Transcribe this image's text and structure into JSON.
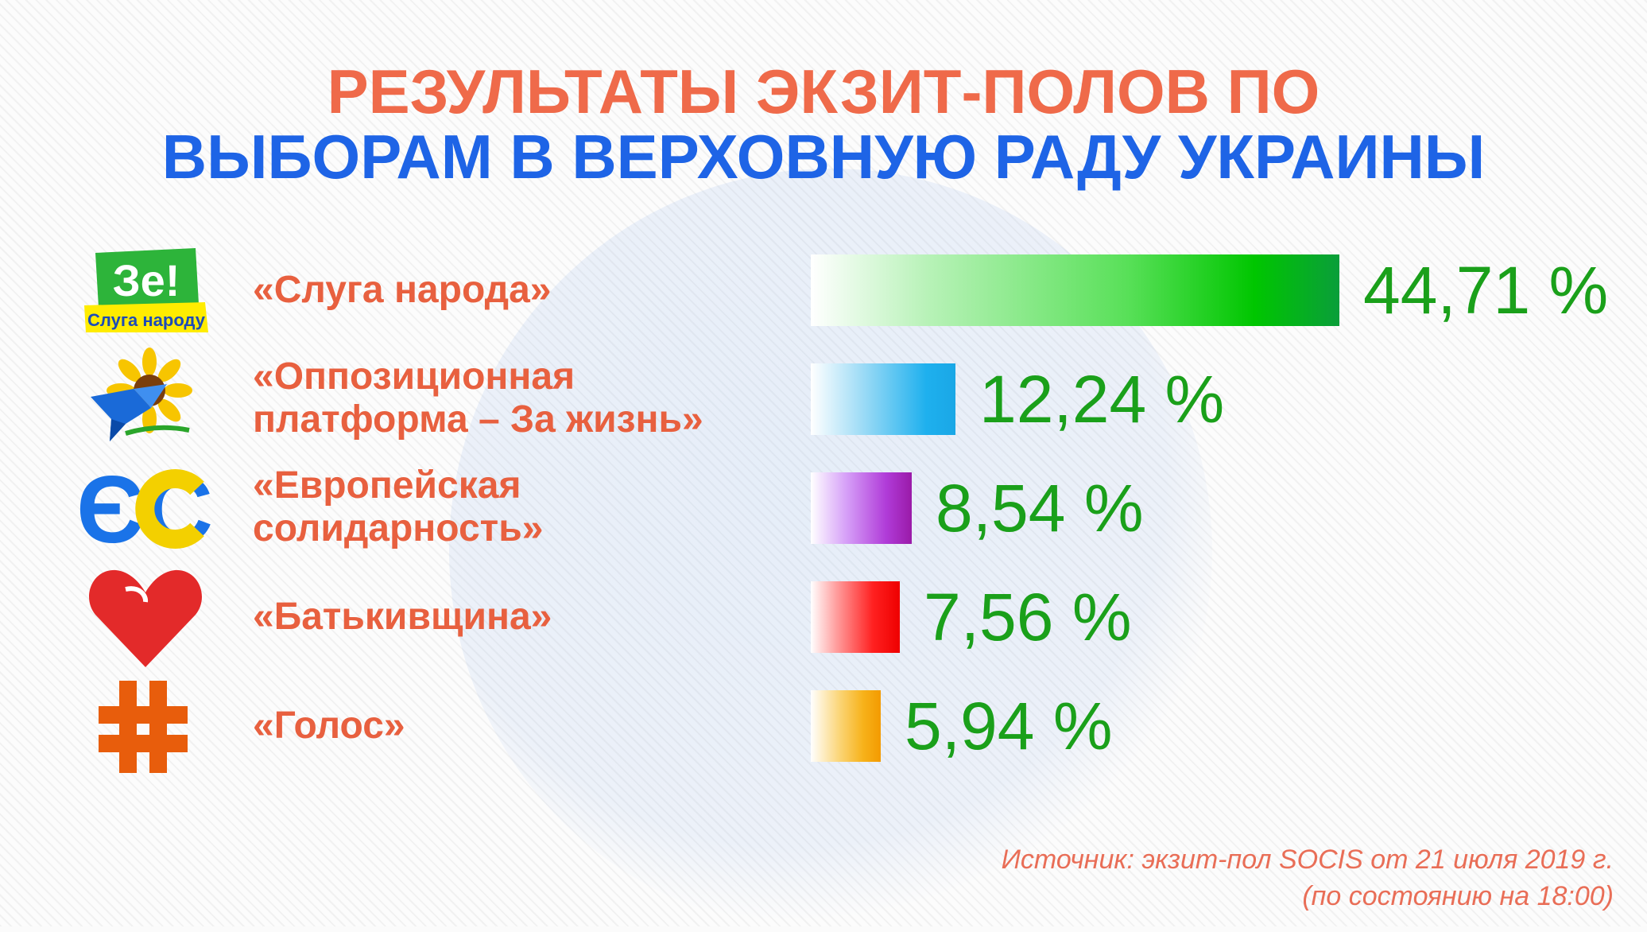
{
  "title_line1": "РЕЗУЛЬТАТЫ ЭКЗИТ-ПОЛОВ ПО",
  "title_line2": "ВЫБОРАМ В ВЕРХОВНУЮ РАДУ УКРАИНЫ",
  "logos": {
    "sluga_top": "Зе!",
    "sluga_bottom": "Слуга народу",
    "es": "ЄС"
  },
  "source_line1": "Источник: экзит-пол SOCIS от 21 июля 2019 г.",
  "source_line2": "(по состоянию на 18:00)",
  "colors": {
    "title_top": "#ef6a4a",
    "title_bottom": "#1e64e6",
    "party_text": "#e8603f",
    "value_text": "#1aa01a"
  },
  "chart_data": {
    "type": "bar",
    "orientation": "horizontal",
    "title": "РЕЗУЛЬТАТЫ ЭКЗИТ-ПОЛОВ ПО ВЫБОРАМ В ВЕРХОВНУЮ РАДУ УКРАИНЫ",
    "categories": [
      "«Слуга народа»",
      "«Оппозиционная платформа – За жизнь»",
      "«Европейская солидарность»",
      "«Батькивщина»",
      "«Голос»"
    ],
    "values": [
      44.71,
      12.24,
      8.54,
      7.56,
      5.94
    ],
    "value_labels": [
      "44,71 %",
      "12,24 %",
      "8,54 %",
      "7,56 %",
      "5,94 %"
    ],
    "unit": "%",
    "bar_colors": [
      "#00a63c",
      "#1aa7e6",
      "#a21fb0",
      "#ee0000",
      "#f39a00"
    ],
    "grid": false
  },
  "rows": [
    {
      "label_lines": [
        "«Слуга народа»"
      ],
      "logo": "sluga-naroda-logo"
    },
    {
      "label_lines": [
        "«Оппозиционная",
        "платформа – За жизнь»"
      ],
      "logo": "sunflower-bird-logo"
    },
    {
      "label_lines": [
        "«Европейская",
        "солидарность»"
      ],
      "logo": "es-logo"
    },
    {
      "label_lines": [
        "«Батькивщина»"
      ],
      "logo": "heart-logo"
    },
    {
      "label_lines": [
        "«Голос»"
      ],
      "logo": "hash-logo"
    }
  ]
}
